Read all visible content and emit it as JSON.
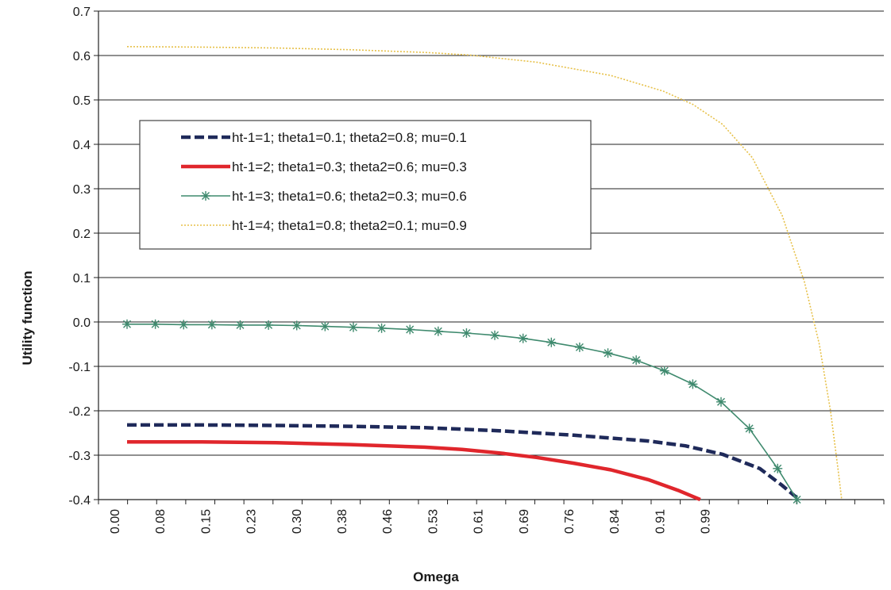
{
  "chart_data": {
    "type": "line",
    "title": "",
    "xlabel": "Omega",
    "ylabel": "Utility function",
    "ylim": [
      -0.4,
      0.7
    ],
    "ytick_values": [
      -0.4,
      -0.3,
      -0.2,
      -0.1,
      0.0,
      0.1,
      0.2,
      0.3,
      0.4,
      0.5,
      0.6,
      0.7
    ],
    "ytick_labels": [
      "-0.4",
      "-0.3",
      "-0.2",
      "-0.1",
      "0.0",
      "0.1",
      "0.2",
      "0.3",
      "0.4",
      "0.5",
      "0.6",
      "0.7"
    ],
    "xlim": [
      -0.0384,
      1.0167
    ],
    "xtick_labels": [
      "0.00",
      "0.08",
      "0.15",
      "0.23",
      "0.30",
      "0.38",
      "0.46",
      "0.53",
      "0.61",
      "0.69",
      "0.76",
      "0.84",
      "0.91",
      "0.99"
    ],
    "grid": "horizontal",
    "legend_position": "upper-left",
    "series": [
      {
        "name": "ht-1=1; theta1=0.1; theta2=0.8; mu=0.1",
        "color": "#1f2a5a",
        "style": "dashed",
        "x": [
          0.0,
          0.1,
          0.2,
          0.3,
          0.4,
          0.5,
          0.6,
          0.7,
          0.75,
          0.8,
          0.85,
          0.88,
          0.9,
          0.905
        ],
        "y": [
          -0.232,
          -0.232,
          -0.233,
          -0.235,
          -0.238,
          -0.245,
          -0.255,
          -0.268,
          -0.279,
          -0.298,
          -0.33,
          -0.368,
          -0.396,
          -0.4
        ]
      },
      {
        "name": "ht-1=2; theta1=0.3; theta2=0.6; mu=0.3",
        "color": "#e0262c",
        "style": "solid",
        "x": [
          0.0,
          0.1,
          0.2,
          0.3,
          0.4,
          0.45,
          0.5,
          0.55,
          0.6,
          0.65,
          0.7,
          0.74,
          0.76,
          0.77
        ],
        "y": [
          -0.27,
          -0.27,
          -0.272,
          -0.276,
          -0.282,
          -0.287,
          -0.295,
          -0.305,
          -0.318,
          -0.333,
          -0.355,
          -0.379,
          -0.393,
          -0.4
        ]
      },
      {
        "name": "ht-1=3; theta1=0.6; theta2=0.3; mu=0.6",
        "color": "#3f8a6e",
        "style": "solid-star",
        "x": [
          0.0,
          0.038,
          0.076,
          0.114,
          0.152,
          0.19,
          0.228,
          0.266,
          0.304,
          0.342,
          0.38,
          0.418,
          0.456,
          0.494,
          0.532,
          0.57,
          0.608,
          0.646,
          0.684,
          0.722,
          0.76,
          0.798,
          0.836,
          0.874,
          0.9
        ],
        "y": [
          -0.005,
          -0.005,
          -0.006,
          -0.006,
          -0.007,
          -0.007,
          -0.008,
          -0.01,
          -0.012,
          -0.014,
          -0.017,
          -0.021,
          -0.025,
          -0.03,
          -0.037,
          -0.046,
          -0.057,
          -0.07,
          -0.086,
          -0.11,
          -0.14,
          -0.18,
          -0.24,
          -0.33,
          -0.4
        ]
      },
      {
        "name": "ht-1=4; theta1=0.8; theta2=0.1; mu=0.9",
        "color": "#e7c14a",
        "style": "dotted",
        "x": [
          0.0,
          0.1,
          0.2,
          0.3,
          0.4,
          0.46,
          0.55,
          0.65,
          0.72,
          0.76,
          0.8,
          0.84,
          0.88,
          0.91,
          0.93,
          0.945,
          0.955,
          0.96
        ],
        "y": [
          0.62,
          0.619,
          0.617,
          0.613,
          0.607,
          0.601,
          0.585,
          0.555,
          0.52,
          0.49,
          0.445,
          0.37,
          0.24,
          0.09,
          -0.05,
          -0.2,
          -0.33,
          -0.4
        ]
      }
    ]
  }
}
